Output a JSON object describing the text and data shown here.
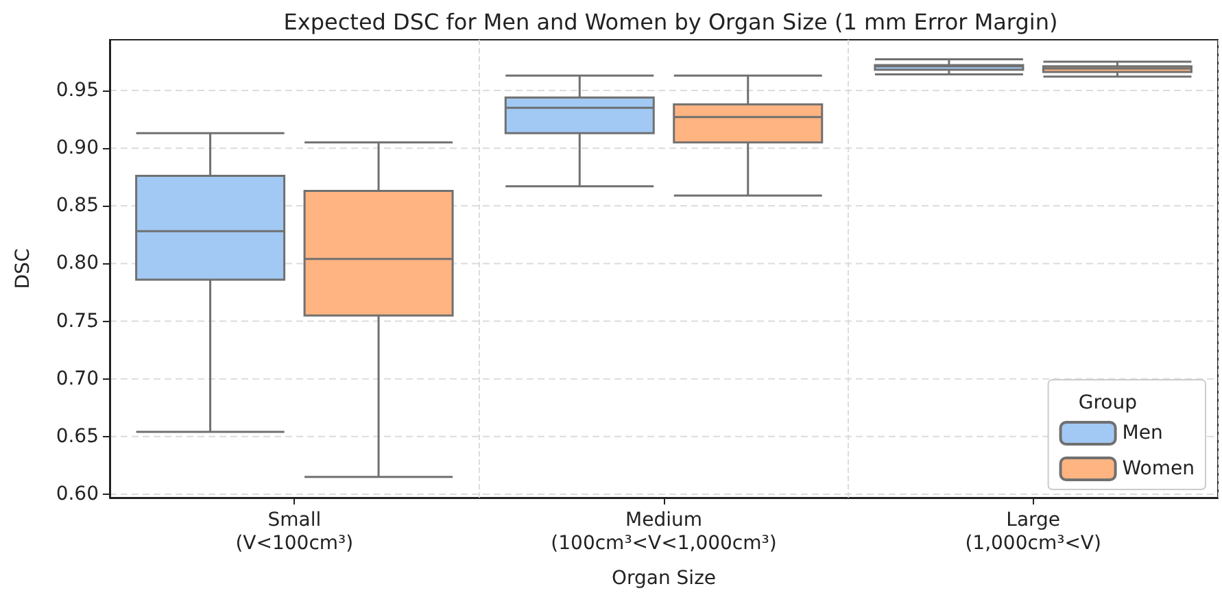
{
  "chart_data": {
    "type": "box",
    "title": "Expected DSC for Men and Women by Organ Size (1 mm Error Margin)",
    "xlabel": "Organ Size",
    "ylabel": "DSC",
    "legend_title": "Group",
    "categories": [
      "Small\n(V<100cm³)",
      "Medium\n(100cm³<V<1,000cm³)",
      "Large\n(1,000cm³<V)"
    ],
    "series": [
      {
        "name": "Men",
        "color": "#a1c9f4",
        "boxes": [
          {
            "low": 0.654,
            "q1": 0.786,
            "median": 0.828,
            "q3": 0.876,
            "high": 0.913
          },
          {
            "low": 0.867,
            "q1": 0.913,
            "median": 0.935,
            "q3": 0.944,
            "high": 0.963
          },
          {
            "low": 0.964,
            "q1": 0.968,
            "median": 0.971,
            "q3": 0.972,
            "high": 0.977
          }
        ]
      },
      {
        "name": "Women",
        "color": "#ffb482",
        "boxes": [
          {
            "low": 0.615,
            "q1": 0.755,
            "median": 0.804,
            "q3": 0.863,
            "high": 0.905
          },
          {
            "low": 0.859,
            "q1": 0.905,
            "median": 0.927,
            "q3": 0.938,
            "high": 0.963
          },
          {
            "low": 0.962,
            "q1": 0.966,
            "median": 0.969,
            "q3": 0.971,
            "high": 0.975
          }
        ]
      }
    ],
    "ylim": [
      0.597,
      0.994
    ],
    "yticks": [
      {
        "value": 0.6,
        "label": "0.60"
      },
      {
        "value": 0.65,
        "label": "0.65"
      },
      {
        "value": 0.7,
        "label": "0.70"
      },
      {
        "value": 0.75,
        "label": "0.75"
      },
      {
        "value": 0.8,
        "label": "0.80"
      },
      {
        "value": 0.85,
        "label": "0.85"
      },
      {
        "value": 0.9,
        "label": "0.90"
      },
      {
        "value": 0.95,
        "label": "0.95"
      }
    ],
    "grid": true,
    "legend": "bottom right"
  }
}
